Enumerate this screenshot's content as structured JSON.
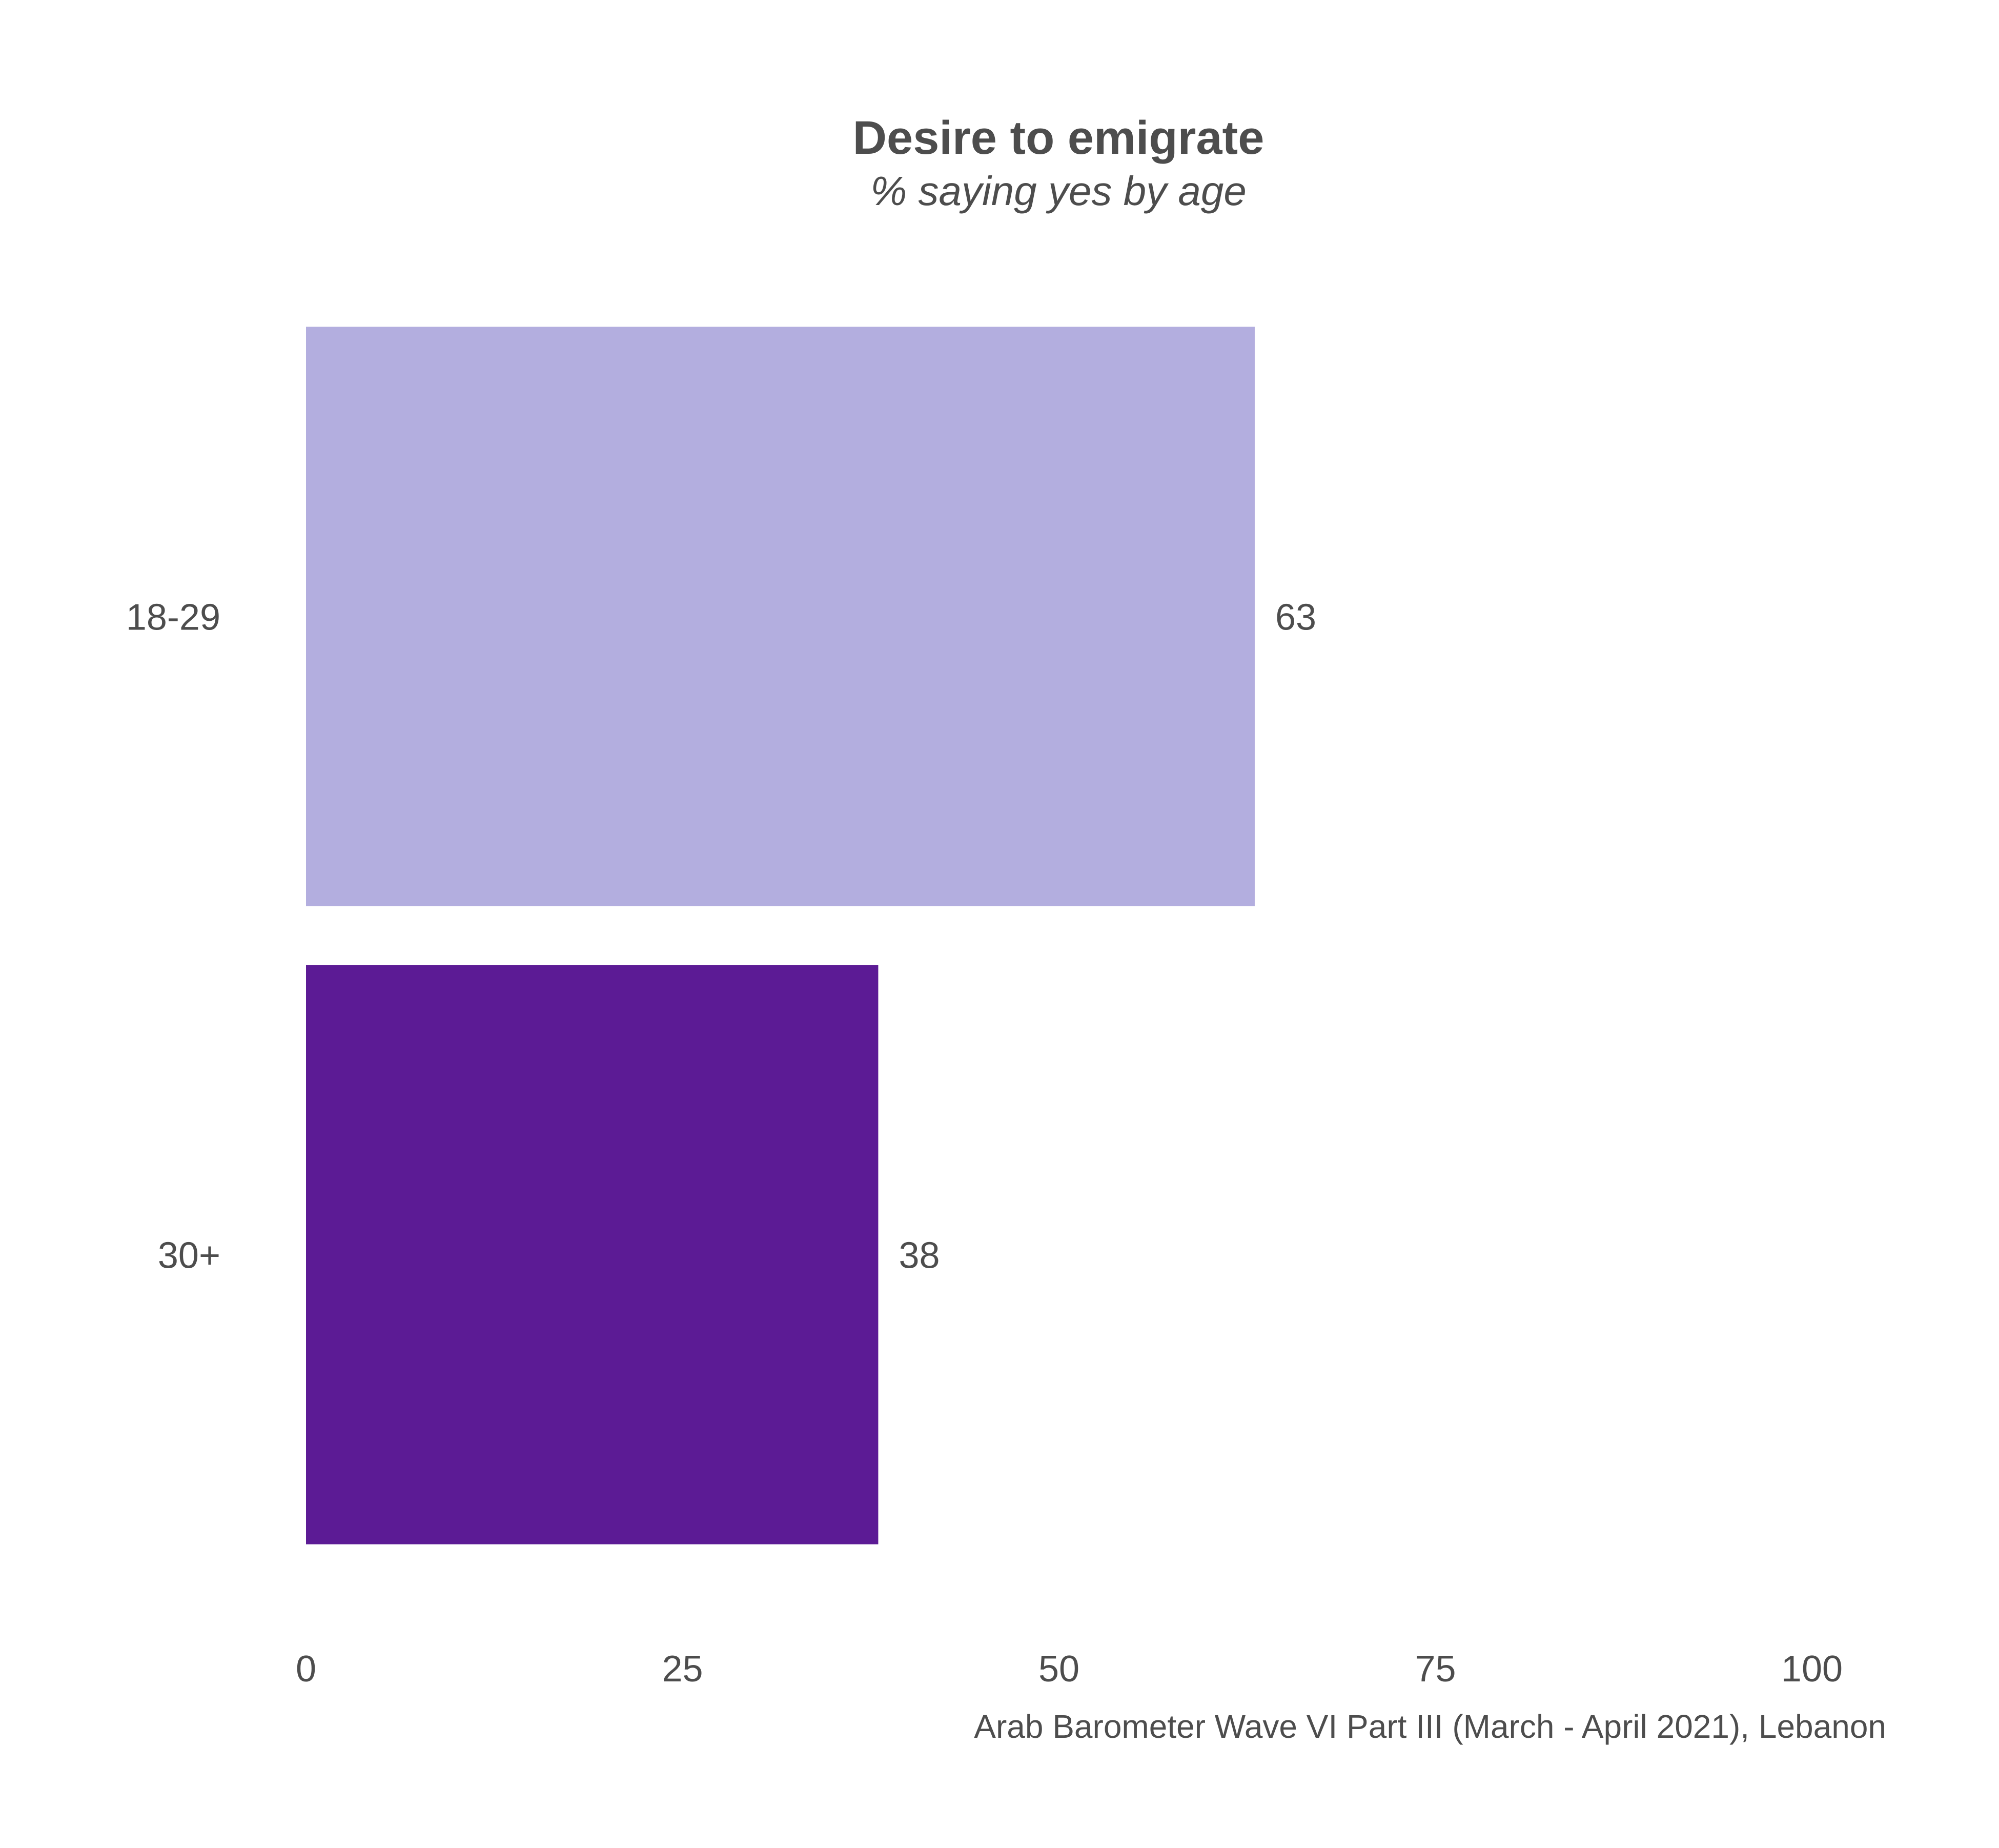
{
  "chart_data": {
    "type": "bar",
    "orientation": "horizontal",
    "title": "Desire to emigrate",
    "subtitle": "% saying yes by age",
    "categories": [
      "18-29",
      "30+"
    ],
    "values": [
      63,
      38
    ],
    "colors": [
      "#b3aedf",
      "#5c1b95"
    ],
    "xlim": [
      0,
      100
    ],
    "xticks": [
      0,
      25,
      50,
      75,
      100
    ],
    "xlabel": "",
    "ylabel": "",
    "caption": "Arab Barometer Wave VI Part III (March - April 2021), Lebanon",
    "grid": false,
    "legend": "none"
  }
}
